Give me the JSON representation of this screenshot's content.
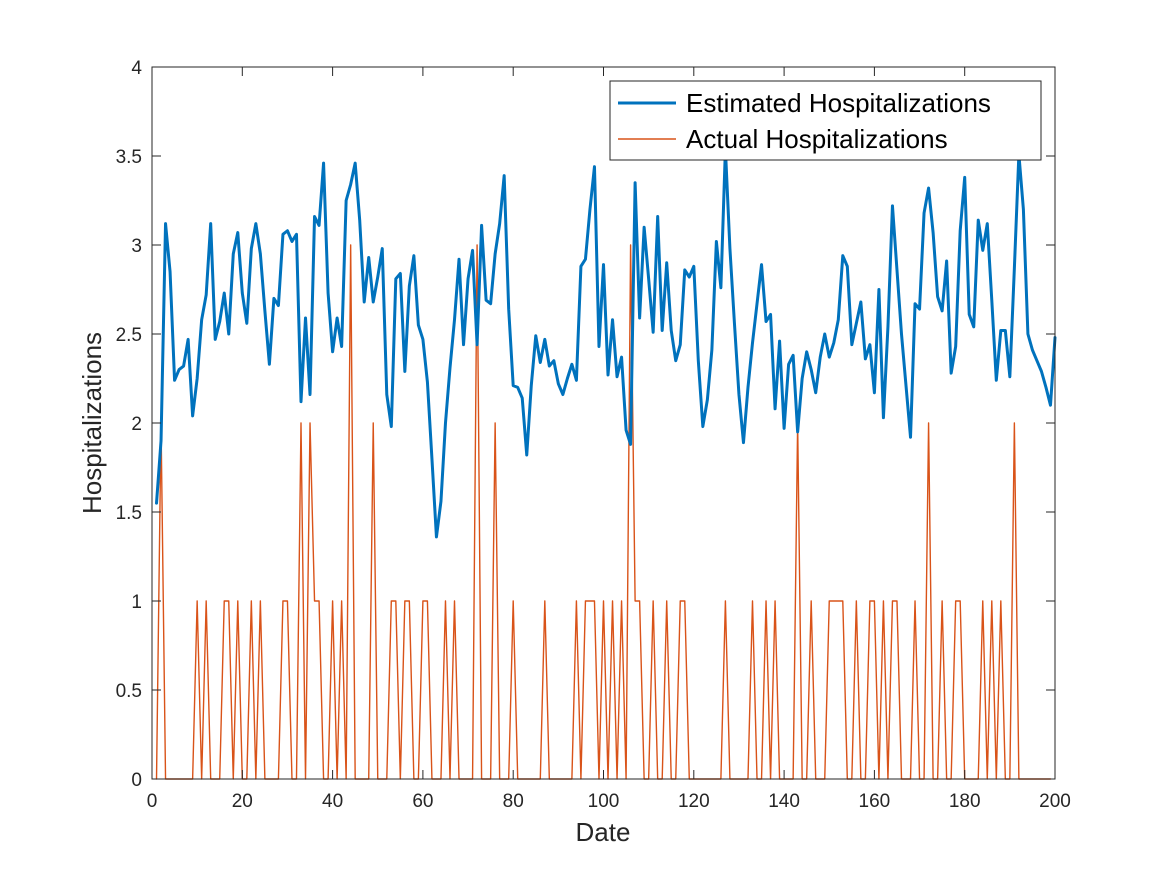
{
  "chart_data": {
    "type": "line",
    "title": "",
    "xlabel": "Date",
    "ylabel": "Hospitalizations",
    "xlim": [
      0,
      200
    ],
    "ylim": [
      0,
      4
    ],
    "xticks": [
      "0",
      "20",
      "40",
      "60",
      "80",
      "100",
      "120",
      "140",
      "160",
      "180",
      "200"
    ],
    "yticks": [
      "0",
      "0.5",
      "1",
      "1.5",
      "2",
      "2.5",
      "3",
      "3.5",
      "4"
    ],
    "grid": false,
    "legend_position": "top-right",
    "series": [
      {
        "name": "Estimated Hospitalizations",
        "color": "#0072BD",
        "x_start": 1,
        "values": [
          1.55,
          1.9,
          3.12,
          2.85,
          2.24,
          2.3,
          2.32,
          2.47,
          2.04,
          2.25,
          2.58,
          2.72,
          3.12,
          2.47,
          2.57,
          2.73,
          2.5,
          2.95,
          3.07,
          2.73,
          2.56,
          2.98,
          3.12,
          2.95,
          2.63,
          2.33,
          2.7,
          2.66,
          3.06,
          3.08,
          3.02,
          3.06,
          2.12,
          2.59,
          2.16,
          3.16,
          3.11,
          3.46,
          2.73,
          2.4,
          2.59,
          2.43,
          3.25,
          3.34,
          3.46,
          3.14,
          2.68,
          2.93,
          2.68,
          2.82,
          2.98,
          2.16,
          1.98,
          2.81,
          2.84,
          2.29,
          2.77,
          2.94,
          2.55,
          2.47,
          2.23,
          1.8,
          1.36,
          1.56,
          2.0,
          2.31,
          2.58,
          2.92,
          2.44,
          2.81,
          2.97,
          2.44,
          3.11,
          2.69,
          2.67,
          2.95,
          3.12,
          3.39,
          2.64,
          2.21,
          2.2,
          2.14,
          1.82,
          2.21,
          2.49,
          2.34,
          2.47,
          2.32,
          2.35,
          2.22,
          2.16,
          2.25,
          2.33,
          2.24,
          2.88,
          2.92,
          3.2,
          3.44,
          2.43,
          2.89,
          2.27,
          2.58,
          2.26,
          2.37,
          1.96,
          1.88,
          3.35,
          2.59,
          3.1,
          2.81,
          2.51,
          3.16,
          2.52,
          2.9,
          2.52,
          2.35,
          2.44,
          2.86,
          2.82,
          2.88,
          2.35,
          1.98,
          2.13,
          2.41,
          3.02,
          2.76,
          3.54,
          2.98,
          2.56,
          2.16,
          1.89,
          2.2,
          2.45,
          2.67,
          2.89,
          2.57,
          2.61,
          2.08,
          2.46,
          1.97,
          2.33,
          2.38,
          1.95,
          2.25,
          2.4,
          2.3,
          2.17,
          2.37,
          2.5,
          2.37,
          2.45,
          2.58,
          2.94,
          2.88,
          2.44,
          2.56,
          2.68,
          2.36,
          2.44,
          2.17,
          2.75,
          2.03,
          2.54,
          3.22,
          2.86,
          2.5,
          2.21,
          1.92,
          2.67,
          2.64,
          3.18,
          3.32,
          3.07,
          2.71,
          2.63,
          2.91,
          2.28,
          2.43,
          3.08,
          3.38,
          2.61,
          2.54,
          3.14,
          2.97,
          3.12,
          2.69,
          2.24,
          2.52,
          2.52,
          2.26,
          2.87,
          3.51,
          3.2,
          2.5,
          2.41,
          2.35,
          2.29,
          2.2,
          2.1,
          2.48
        ]
      },
      {
        "name": "Actual Hospitalizations",
        "color": "#D95319",
        "x_start": 1,
        "values": [
          0,
          2,
          0,
          0,
          0,
          0,
          0,
          0,
          0,
          1,
          0,
          1,
          0,
          0,
          0,
          1,
          1,
          0,
          1,
          0,
          0,
          1,
          0,
          1,
          0,
          0,
          0,
          0,
          1,
          1,
          0,
          0,
          2,
          0,
          2,
          1,
          1,
          0,
          0,
          1,
          0,
          1,
          0,
          3,
          0,
          0,
          0,
          0,
          2,
          0,
          0,
          0,
          1,
          1,
          0,
          1,
          1,
          0,
          0,
          1,
          1,
          0,
          0,
          0,
          1,
          0,
          1,
          0,
          0,
          0,
          0,
          3,
          0,
          0,
          0,
          2,
          0,
          0,
          0,
          1,
          0,
          0,
          0,
          0,
          0,
          0,
          1,
          0,
          0,
          0,
          0,
          0,
          0,
          1,
          0,
          1,
          1,
          1,
          0,
          1,
          0,
          1,
          0,
          1,
          0,
          3,
          1,
          1,
          0,
          0,
          1,
          0,
          0,
          1,
          0,
          0,
          1,
          1,
          0,
          0,
          0,
          0,
          0,
          0,
          0,
          0,
          1,
          0,
          0,
          0,
          0,
          0,
          1,
          0,
          0,
          1,
          0,
          1,
          0,
          0,
          0,
          0,
          2,
          0,
          0,
          1,
          0,
          0,
          0,
          1,
          1,
          1,
          1,
          0,
          0,
          1,
          0,
          0,
          1,
          1,
          0,
          1,
          0,
          1,
          1,
          0,
          0,
          0,
          1,
          0,
          0,
          2,
          0,
          0,
          1,
          0,
          0,
          1,
          1,
          0,
          0,
          0,
          0,
          1,
          0,
          1,
          0,
          1,
          0,
          0,
          2,
          0,
          0,
          0,
          0,
          0,
          0,
          0,
          0
        ]
      }
    ]
  }
}
